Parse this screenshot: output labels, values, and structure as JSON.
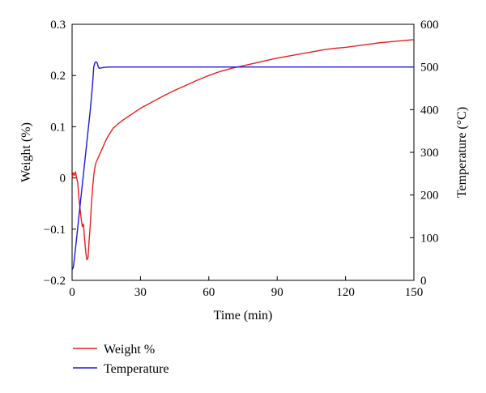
{
  "chart_data": {
    "type": "line",
    "xlabel": "Time (min)",
    "ylabel_left": "Weight (%)",
    "ylabel_right": "Temperature (°C)",
    "xlim": [
      0,
      150
    ],
    "ylim_left": [
      -0.2,
      0.3
    ],
    "ylim_right": [
      0,
      600
    ],
    "x_ticks": [
      "0",
      "30",
      "60",
      "90",
      "120",
      "150"
    ],
    "y_left_ticks": [
      "−0.2",
      "−0.1",
      "0",
      "0.1",
      "0.2",
      "0.3"
    ],
    "y_right_ticks": [
      "0",
      "100",
      "200",
      "300",
      "400",
      "500",
      "600"
    ],
    "grid": false,
    "legend_position": "bottom-left",
    "series": [
      {
        "name": "Weight %",
        "axis": "left",
        "color": "#e8201e",
        "x": [
          0,
          0.5,
          1,
          1.5,
          2,
          2.5,
          3,
          3.5,
          4,
          4.5,
          5,
          5.5,
          6,
          6.5,
          7,
          7.5,
          8,
          8.5,
          9,
          9.5,
          10,
          10.5,
          11,
          12,
          13,
          14,
          15,
          16,
          17,
          18,
          20,
          22,
          25,
          28,
          30,
          35,
          40,
          45,
          50,
          55,
          60,
          65,
          70,
          75,
          80,
          85,
          90,
          95,
          100,
          105,
          110,
          115,
          120,
          125,
          130,
          135,
          140,
          145,
          150
        ],
        "y": [
          0.0,
          0.01,
          0.005,
          0.012,
          0.0,
          -0.01,
          -0.04,
          -0.06,
          -0.08,
          -0.095,
          -0.09,
          -0.12,
          -0.145,
          -0.16,
          -0.155,
          -0.12,
          -0.09,
          -0.05,
          -0.02,
          0.005,
          0.02,
          0.03,
          0.035,
          0.045,
          0.055,
          0.065,
          0.075,
          0.083,
          0.09,
          0.097,
          0.105,
          0.112,
          0.121,
          0.13,
          0.136,
          0.148,
          0.16,
          0.171,
          0.181,
          0.191,
          0.2,
          0.208,
          0.214,
          0.219,
          0.224,
          0.229,
          0.234,
          0.238,
          0.242,
          0.246,
          0.25,
          0.253,
          0.255,
          0.258,
          0.261,
          0.264,
          0.266,
          0.268,
          0.27
        ]
      },
      {
        "name": "Temperature",
        "axis": "right",
        "color": "#1a1adc",
        "x": [
          0,
          0.5,
          1,
          2,
          3,
          4,
          5,
          6,
          7,
          8,
          9,
          9.5,
          10,
          10.5,
          11,
          11.5,
          12,
          13,
          14,
          16,
          18,
          20,
          25,
          30,
          40,
          60,
          80,
          100,
          120,
          140,
          150
        ],
        "y": [
          25,
          30,
          50,
          100,
          150,
          200,
          250,
          300,
          350,
          400,
          460,
          500,
          510,
          512,
          510,
          500,
          497,
          498,
          499,
          500,
          500,
          500,
          500,
          500,
          500,
          500,
          500,
          500,
          500,
          500,
          500
        ]
      }
    ]
  }
}
